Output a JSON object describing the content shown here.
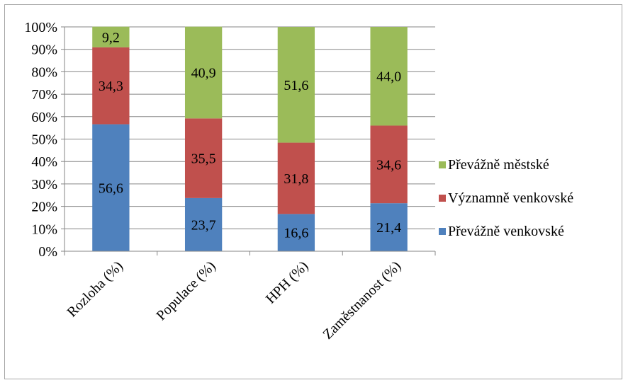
{
  "chart_data": {
    "type": "bar",
    "stacked": true,
    "percent_axis": true,
    "categories": [
      "Rozloha (%)",
      "Populace (%)",
      "HPH (%)",
      "Zaměstnanost (%)"
    ],
    "series": [
      {
        "name": "Převážně venkovské",
        "color": "#4f81bd",
        "values": [
          56.6,
          23.7,
          16.6,
          21.4
        ],
        "labels": [
          "56,6",
          "23,7",
          "16,6",
          "21,4"
        ]
      },
      {
        "name": "Významně venkovské",
        "color": "#c0504d",
        "values": [
          34.3,
          35.5,
          31.8,
          34.6
        ],
        "labels": [
          "34,3",
          "35,5",
          "31,8",
          "34,6"
        ]
      },
      {
        "name": "Převážně městské",
        "color": "#9bbb59",
        "values": [
          9.2,
          40.9,
          51.6,
          44.0
        ],
        "labels": [
          "9,2",
          "40,9",
          "51,6",
          "44,0"
        ]
      }
    ],
    "y_ticks": [
      "0%",
      "10%",
      "20%",
      "30%",
      "40%",
      "50%",
      "60%",
      "70%",
      "80%",
      "90%",
      "100%"
    ],
    "ylim": [
      0,
      100
    ],
    "grid": true,
    "legend_position": "right",
    "legend_order": [
      2,
      1,
      0
    ]
  }
}
